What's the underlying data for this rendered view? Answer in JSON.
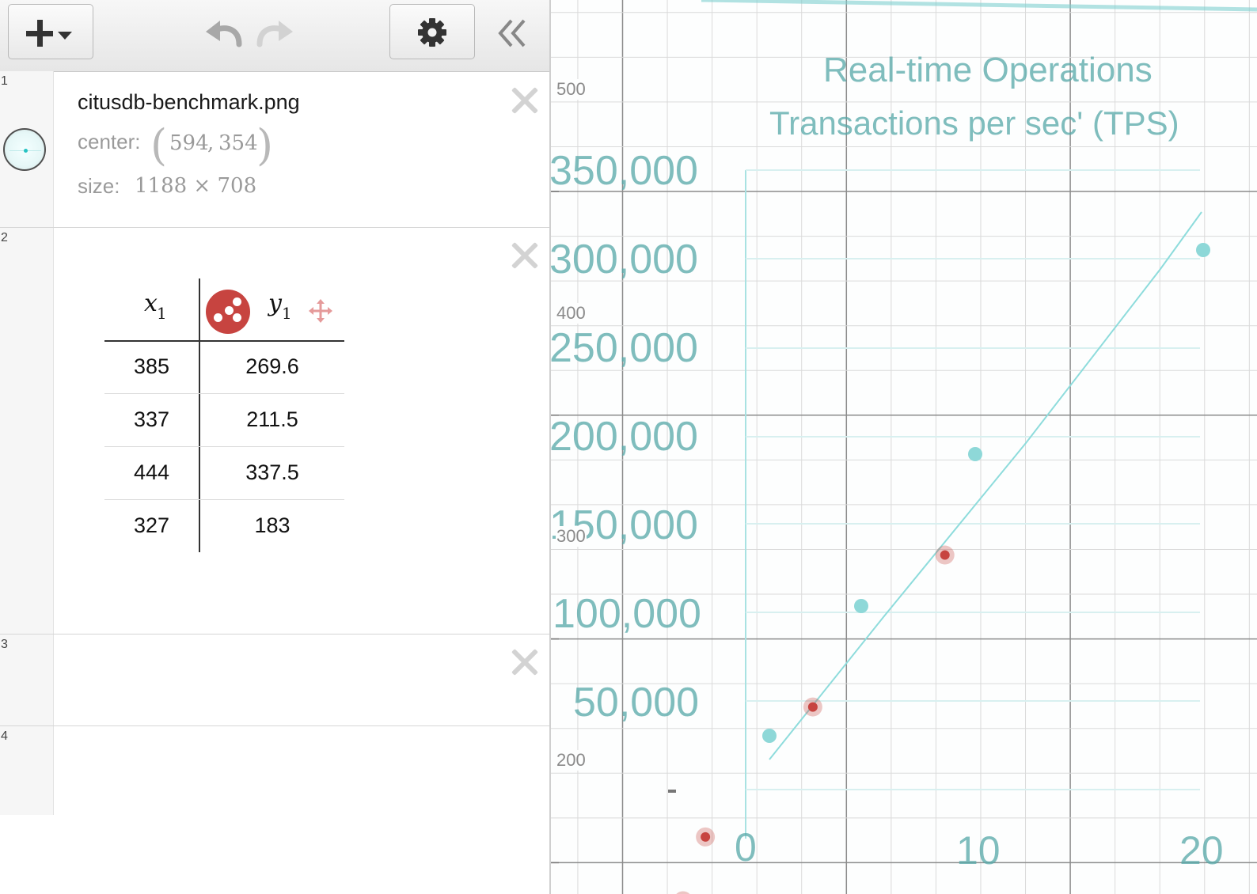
{
  "toolbar": {
    "add_icon": "plus-icon",
    "undo_icon": "undo-icon",
    "redo_icon": "redo-icon",
    "settings_icon": "gear-icon",
    "collapse_icon": "double-chevron-left-icon"
  },
  "expressions": [
    {
      "number": "1",
      "filename": "citusdb-benchmark.png",
      "center_label": "center:",
      "center_x": "594",
      "center_sep": ",",
      "center_y": "354",
      "size_label": "size:",
      "size_value": "1188 × 708"
    },
    {
      "number": "2",
      "table": {
        "x_header": "x",
        "x_sub": "1",
        "y_header": "y",
        "y_sub": "1",
        "series_color": "#c74440",
        "rows": [
          {
            "x": "385",
            "y": "269.6"
          },
          {
            "x": "337",
            "y": "211.5"
          },
          {
            "x": "444",
            "y": "337.5"
          },
          {
            "x": "327",
            "y": "183"
          }
        ]
      }
    },
    {
      "number": "3"
    },
    {
      "number": "4"
    }
  ],
  "graph": {
    "y_ticks": [
      "500",
      "400",
      "300",
      "200"
    ],
    "background_image": {
      "title_line1": "Real-time Operations",
      "title_line2": "Transactions per sec' (TPS)",
      "y_labels": [
        "350,000",
        "300,000",
        "250,000",
        "200,000",
        "150,000",
        "100,000",
        "50,000"
      ],
      "x_labels": [
        "0",
        "10",
        "20"
      ]
    }
  },
  "chart_data": {
    "type": "scatter",
    "title": "",
    "xlabel": "",
    "ylabel": "",
    "y_ticks": [
      200,
      300,
      400,
      500
    ],
    "series": [
      {
        "color": "#c74440",
        "points": [
          {
            "x": 385,
            "y": 269.6
          },
          {
            "x": 337,
            "y": 211.5
          },
          {
            "x": 444,
            "y": 337.5
          },
          {
            "x": 327,
            "y": 183
          }
        ]
      }
    ]
  }
}
